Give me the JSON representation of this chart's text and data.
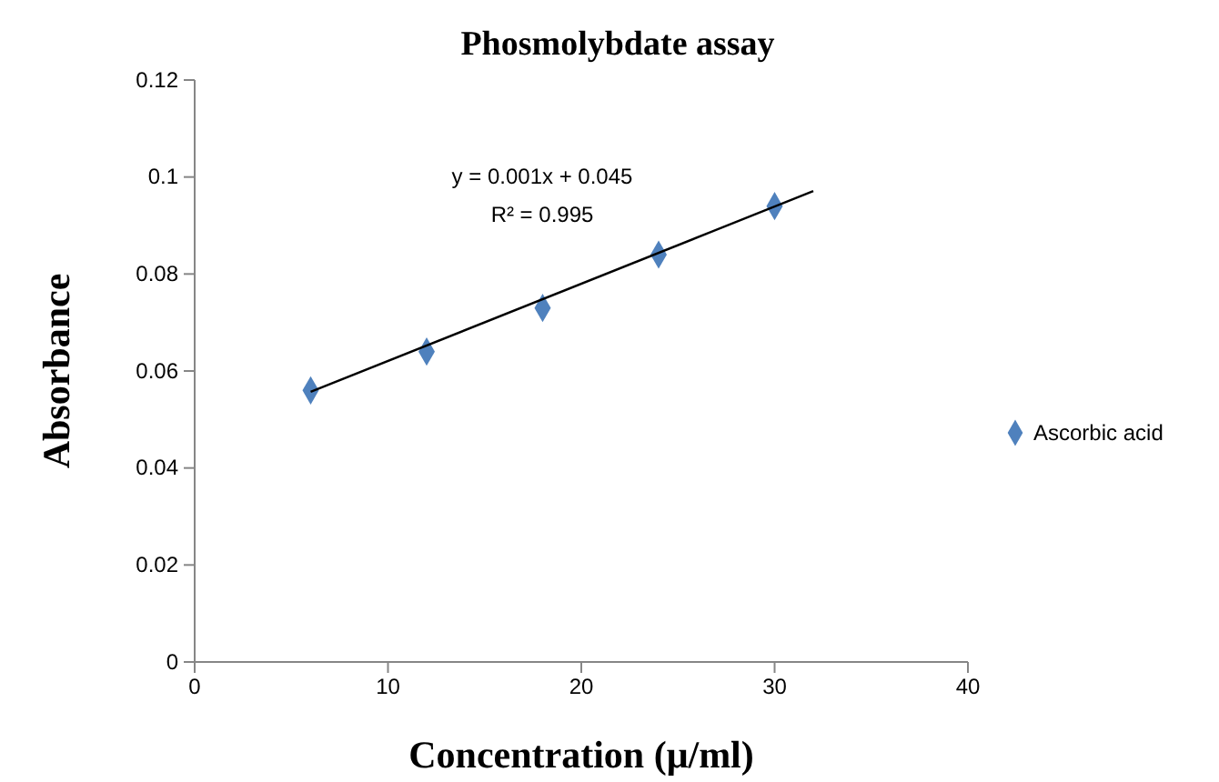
{
  "chart_data": {
    "type": "scatter",
    "title": "Phosmolybdate assay",
    "xlabel": "Concentration (μ/ml)",
    "ylabel": "Absorbance",
    "xlim": [
      0,
      40
    ],
    "xticks": [
      0,
      10,
      20,
      30,
      40
    ],
    "ylim": [
      0,
      0.12
    ],
    "yticks": [
      0,
      0.02,
      0.04,
      0.06,
      0.08,
      0.1,
      0.12
    ],
    "grid": false,
    "legend": "right",
    "series": [
      {
        "name": "Ascorbic acid",
        "color": "#4f81bd",
        "marker": "diamond",
        "x": [
          6,
          12,
          18,
          24,
          30
        ],
        "values": [
          0.056,
          0.064,
          0.073,
          0.084,
          0.094
        ]
      },
      {
        "type": "line",
        "color": "#000000",
        "marker": "none",
        "line_style": "solid",
        "x": [
          6,
          32
        ],
        "values": [
          0.0557,
          0.0971
        ]
      }
    ],
    "annotations": [
      "y = 0.001x + 0.045",
      "R² = 0.995"
    ]
  }
}
